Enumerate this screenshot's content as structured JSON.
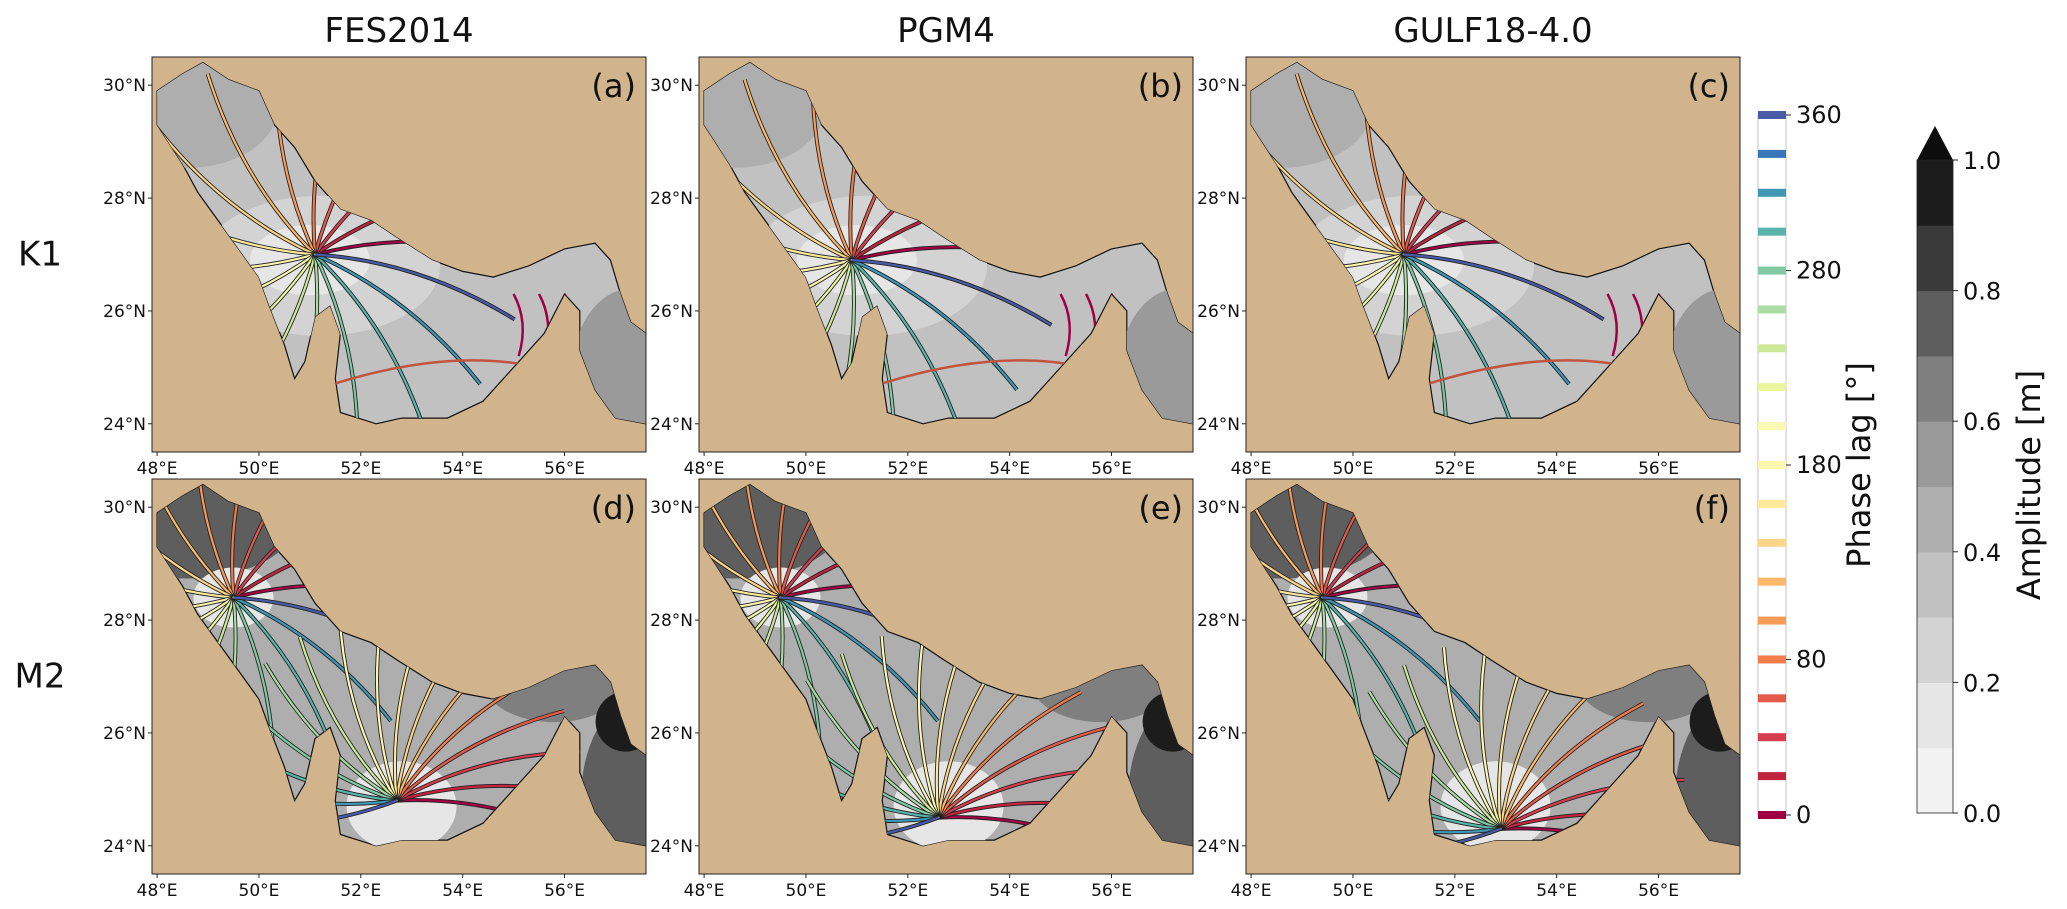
{
  "chart_data": {
    "type": "map",
    "columns": [
      "FES2014",
      "PGM4",
      "GULF18-4.0"
    ],
    "rows": [
      "K1",
      "M2"
    ],
    "panels": [
      {
        "label": "(a)",
        "row": "K1",
        "column": "FES2014"
      },
      {
        "label": "(b)",
        "row": "K1",
        "column": "PGM4"
      },
      {
        "label": "(c)",
        "row": "K1",
        "column": "GULF18-4.0"
      },
      {
        "label": "(d)",
        "row": "M2",
        "column": "FES2014"
      },
      {
        "label": "(e)",
        "row": "M2",
        "column": "PGM4"
      },
      {
        "label": "(f)",
        "row": "M2",
        "column": "GULF18-4.0"
      }
    ],
    "lon_ticks": [
      "48°E",
      "50°E",
      "52°E",
      "54°E",
      "56°E"
    ],
    "lat_ticks": [
      "30°N",
      "28°N",
      "26°N",
      "24°N"
    ],
    "lon_range": [
      47.9,
      57.6
    ],
    "lat_range": [
      23.5,
      30.5
    ],
    "phase_colorbar": {
      "label": "Phase lag [°]",
      "ticks": [
        360,
        280,
        180,
        80,
        0
      ],
      "range": [
        0,
        360
      ],
      "colors": [
        "#9e0142",
        "#c0243f",
        "#d63d4e",
        "#e45a4a",
        "#f27d4a",
        "#f99b58",
        "#fdb96a",
        "#fed587",
        "#fee99c",
        "#fff6b0",
        "#f9f9b4",
        "#e9f59c",
        "#cdea9b",
        "#aadca4",
        "#7fc9a5",
        "#58b3aa",
        "#3f97b6",
        "#3977b8",
        "#4a5ba6"
      ]
    },
    "amplitude_colorbar": {
      "label": "Amplitude [m]",
      "ticks": [
        0.0,
        0.2,
        0.4,
        0.6,
        0.8,
        1.0
      ],
      "range": [
        0.0,
        1.0
      ],
      "levels": 10,
      "extend": "max"
    },
    "land_color": "#d2b48c"
  }
}
